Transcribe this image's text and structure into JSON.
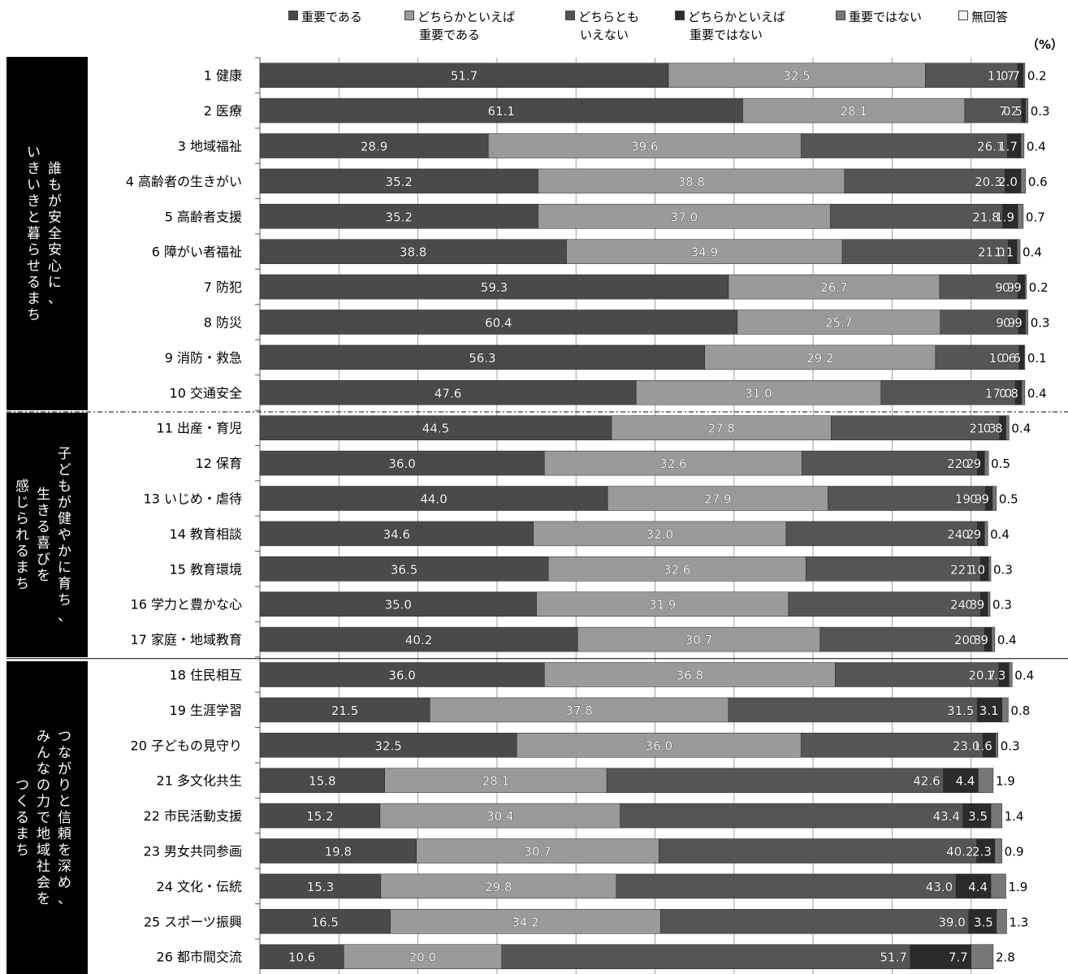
{
  "legend": [
    {
      "line1": "重要である",
      "line2": "",
      "color": "#4a4a4a"
    },
    {
      "line1": "どちらかといえば",
      "line2": "重要である",
      "color": "#9a9a9a"
    },
    {
      "line1": "どちらとも",
      "line2": "いえない",
      "color": "#555555"
    },
    {
      "line1": "どちらかといえば",
      "line2": "重要ではない",
      "color": "#2b2b2b"
    },
    {
      "line1": "重要ではない",
      "line2": "",
      "color": "#777777"
    },
    {
      "line1": "無回答",
      "line2": "",
      "color": "#f5f5f5"
    }
  ],
  "unit": "（%）",
  "sections": [
    {
      "chars": [
        "誰",
        "も",
        "が",
        "安",
        "全",
        "安",
        "心",
        "に",
        "、"
      ],
      "chars2": [
        "い",
        "き",
        "い",
        "き",
        "と",
        "暮",
        "ら",
        "せ",
        "る",
        "ま",
        "ち"
      ]
    },
    {
      "chars": [
        "子",
        "ど",
        "も",
        "が",
        "健",
        "や",
        "か",
        "に",
        "育",
        "ち",
        "、"
      ],
      "chars2": [
        "生",
        "き",
        "る",
        "喜",
        "び",
        "を"
      ],
      "chars3": [
        "感",
        "じ",
        "ら",
        "れ",
        "る",
        "ま",
        "ち"
      ]
    },
    {
      "chars": [
        "つ",
        "な",
        "が",
        "り",
        "と",
        "信",
        "頼",
        "を",
        "深",
        "め",
        "、"
      ],
      "chars2": [
        "み",
        "ん",
        "な",
        "の",
        "力",
        "で",
        "地",
        "域",
        "社",
        "会",
        "を"
      ],
      "chars3": [
        "つ",
        "く",
        "る",
        "ま",
        "ち"
      ]
    }
  ],
  "chart_data": {
    "type": "bar",
    "orientation": "horizontal",
    "stacked": true,
    "xlim": [
      0,
      100
    ],
    "categories": [
      "1 健康",
      "2 医療",
      "3 地域福祉",
      "4 高齢者の生きがい",
      "5 高齢者支援",
      "6 障がい者福祉",
      "7 防犯",
      "8 防災",
      "9 消防・救急",
      "10 交通安全",
      "11 出産・育児",
      "12 保育",
      "13 いじめ・虐待",
      "14 教育相談",
      "15 教育環境",
      "16 学力と豊かな心",
      "17 家庭・地域教育",
      "18 住民相互",
      "19 生涯学習",
      "20 子どもの見守り",
      "21 多文化共生",
      "22 市民活動支援",
      "23 男女共同参画",
      "24 文化・伝統",
      "25 スポーツ振興",
      "26 都市間交流"
    ],
    "series": [
      {
        "name": "重要である",
        "values": [
          51.7,
          61.1,
          28.9,
          35.2,
          35.2,
          38.8,
          59.3,
          60.4,
          56.3,
          47.6,
          44.5,
          36.0,
          44.0,
          34.6,
          36.5,
          35.0,
          40.2,
          36.0,
          21.5,
          32.5,
          15.8,
          15.2,
          19.8,
          15.3,
          16.5,
          10.6
        ]
      },
      {
        "name": "どちらかといえば重要である",
        "values": [
          32.5,
          28.1,
          39.6,
          38.8,
          37.0,
          34.9,
          26.7,
          25.7,
          29.2,
          31.0,
          27.8,
          32.6,
          27.9,
          32.0,
          32.6,
          31.9,
          30.7,
          36.8,
          37.8,
          36.0,
          28.1,
          30.4,
          30.7,
          29.8,
          34.2,
          20.0
        ]
      },
      {
        "name": "どちらともいえない",
        "values": [
          11.7,
          7.2,
          26.1,
          20.3,
          21.8,
          21.0,
          9.9,
          9.9,
          10.6,
          17.0,
          21.3,
          22.2,
          19.9,
          24.2,
          22.1,
          24.3,
          20.8,
          20.7,
          31.5,
          23.0,
          42.6,
          43.4,
          40.2,
          43.0,
          39.0,
          51.7
        ]
      },
      {
        "name": "どちらかといえば重要ではない",
        "values": [
          0.7,
          0.5,
          1.7,
          2.0,
          1.9,
          1.1,
          0.9,
          0.9,
          0.6,
          0.8,
          0.8,
          0.9,
          0.9,
          0.9,
          1.0,
          0.9,
          0.9,
          1.3,
          3.1,
          1.6,
          4.4,
          3.5,
          2.3,
          4.4,
          3.5,
          7.7
        ]
      },
      {
        "name": "重要ではない",
        "values": [
          0.2,
          0.3,
          0.4,
          0.6,
          0.7,
          0.4,
          0.2,
          0.3,
          0.1,
          0.4,
          0.4,
          0.5,
          0.5,
          0.4,
          0.3,
          0.3,
          0.4,
          0.4,
          0.8,
          0.3,
          1.9,
          1.4,
          0.9,
          1.9,
          1.3,
          2.8
        ]
      },
      {
        "name": "無回答",
        "values": [
          0,
          0,
          0,
          0,
          0,
          0,
          0,
          0,
          0,
          0,
          0,
          0,
          0,
          0,
          0,
          0,
          0,
          0,
          0,
          0,
          0,
          0,
          0,
          0,
          0,
          0
        ]
      }
    ],
    "colors": [
      "#4a4a4a",
      "#9a9a9a",
      "#555555",
      "#2b2b2b",
      "#777777",
      "#f5f5f5"
    ],
    "grid": true
  }
}
